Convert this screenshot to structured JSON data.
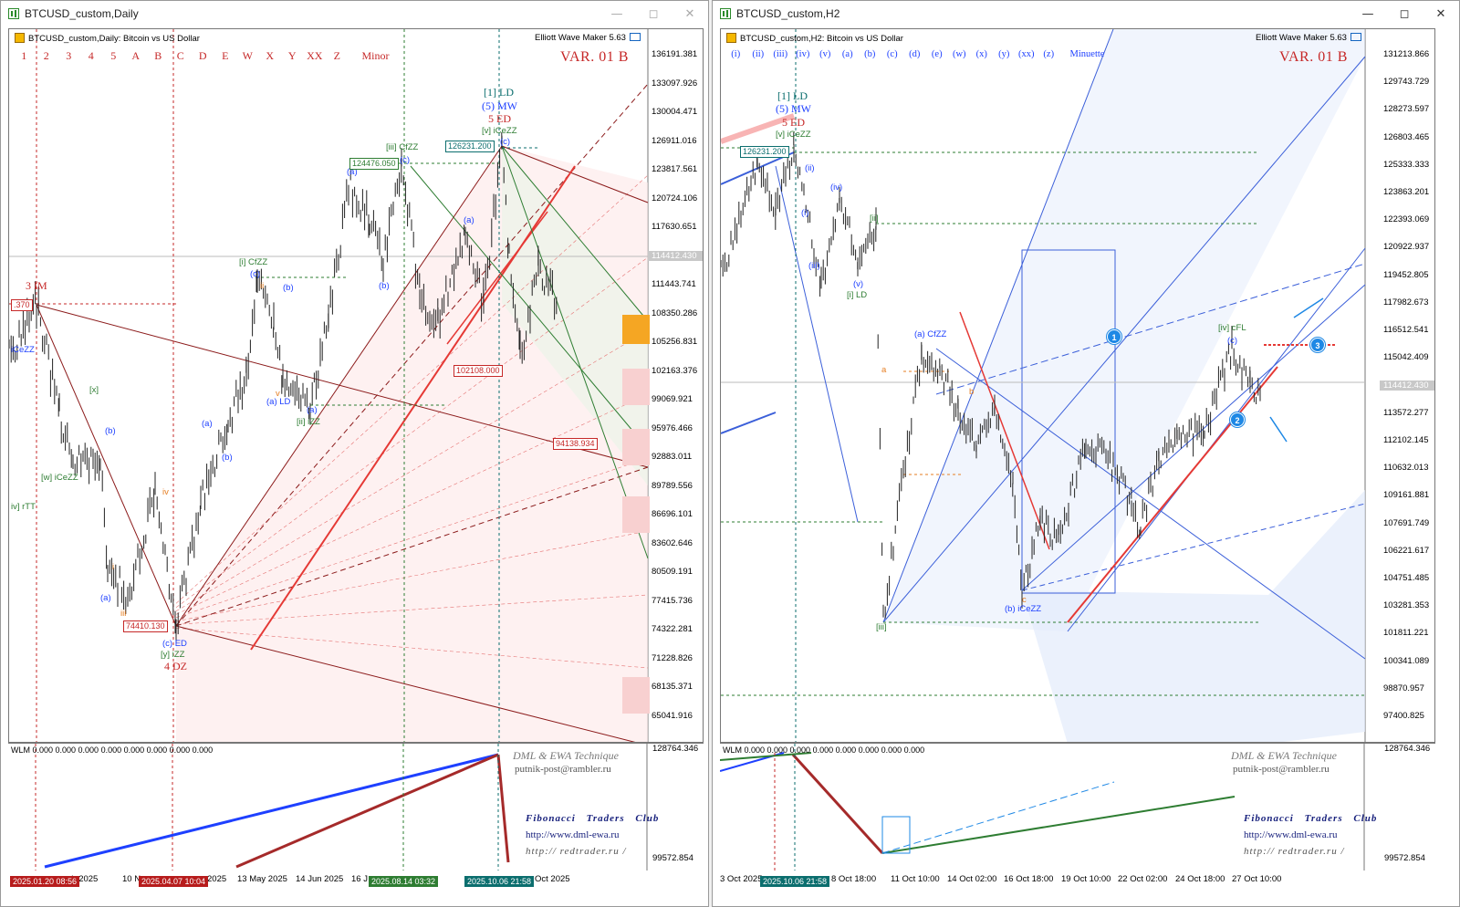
{
  "left": {
    "window_title": "BTCUSD_custom,Daily",
    "chart_header": "BTCUSD_custom,Daily:  Bitcoin vs US Dollar",
    "plugin": "Elliott Wave Maker 5.63",
    "levels": [
      "1",
      "2",
      "3",
      "4",
      "5",
      "A",
      "B",
      "C",
      "D",
      "E",
      "W",
      "X",
      "Y",
      "XX",
      "Z",
      "Minor"
    ],
    "variant": "VAR. 01 B",
    "price_axis": [
      "136191.381",
      "133097.926",
      "130004.471",
      "126911.016",
      "123817.561",
      "120724.106",
      "117630.651",
      "114412.430",
      "111443.741",
      "108350.286",
      "105256.831",
      "102163.376",
      "99069.921",
      "95976.466",
      "92883.011",
      "89789.556",
      "86696.101",
      "83602.646",
      "80509.191",
      "77415.736",
      "74322.281",
      "71228.826",
      "68135.371",
      "65041.916"
    ],
    "sub_axis": [
      "128764.346",
      "99572.854"
    ],
    "sub_label": "WLM 0.000 0.000 0.000 0.000 0.000 0.000 0.000 0.000",
    "boxes": {
      "b1": "126231.200",
      "b2": "124476.050",
      "b3": "102108.000",
      "b4": "94138.934",
      "b5": "74410.130",
      "b6": ".370"
    },
    "labels": {
      "ld1": "[1] LD",
      "mw": "(5) MW",
      "ed": "5 ED",
      "icezz": "[v] iCeZZ",
      "cfzz": "[iii] CfZZ",
      "cfzz2": "[i] CfZZ",
      "im": "3 IM",
      "izz": "[ii] iZZ",
      "ald": "(a) LD",
      "ceze": "iCeZZ",
      "wicezz": "[w] iCeZZ",
      "rtt": "iv] rTT",
      "ced": "(c) ED",
      "yzz": "[y] iZZ",
      "dz": "4 DZ",
      "x": "[x]",
      "a1": "(a)",
      "b1": "(b)",
      "c1": "(c)",
      "a2": "(a)",
      "b2": "(b)",
      "a3": "(a)",
      "c2": "(c)",
      "b3": "(b)",
      "a4": "(a)",
      "a5": "(a)",
      "iv": "iv",
      "v": "v",
      "ii": "ii",
      "i": "i",
      "iii": "iii",
      "v2": "v",
      "bb": "(b)",
      "cc": "(c)"
    },
    "x_axis": [
      "eb 2025",
      "10 N",
      "2025",
      "13 May 2025",
      "14 Jun 2025",
      "16 J",
      "Oct 2025"
    ],
    "x_tags": [
      "2025.01.20 08:56",
      "2025.04.07 10:04",
      "2025.08.14 03:32",
      "2025.10.06 21:58"
    ],
    "credit1": "DML & EWA Technique",
    "email": "putnik-post@rambler.ru",
    "fib": "Fibonacci    Traders    Club",
    "url1": "http://www.dml-ewa.ru",
    "url2": "http://  redtrader.ru  /"
  },
  "right": {
    "window_title": "BTCUSD_custom,H2",
    "chart_header": "BTCUSD_custom,H2:  Bitcoin vs US Dollar",
    "plugin": "Elliott Wave Maker 5.63",
    "levels": [
      "(i)",
      "(ii)",
      "(iii)",
      "(iv)",
      "(v)",
      "(a)",
      "(b)",
      "(c)",
      "(d)",
      "(e)",
      "(w)",
      "(x)",
      "(y)",
      "(xx)",
      "(z)",
      "Minuette"
    ],
    "variant": "VAR. 01 B",
    "price_axis": [
      "131213.866",
      "129743.729",
      "128273.597",
      "126803.465",
      "125333.333",
      "123863.201",
      "122393.069",
      "120922.937",
      "119452.805",
      "117982.673",
      "116512.541",
      "115042.409",
      "114412.430",
      "113572.277",
      "112102.145",
      "110632.013",
      "109161.881",
      "107691.749",
      "106221.617",
      "104751.485",
      "103281.353",
      "101811.221",
      "100341.089",
      "98870.957",
      "97400.825"
    ],
    "sub_axis": [
      "128764.346",
      "99572.854"
    ],
    "sub_label": "WLM 0.000 0.000 0.000 0.000 0.000 0.000 0.000 0.000",
    "boxes": {
      "b1": "126231.200"
    },
    "labels": {
      "ld1": "[1] LD",
      "mw": "(5) MW",
      "ed": "5 ED",
      "icezz": "[v] iCeZZ",
      "ii": "[ii]",
      "ild": "[i] LD",
      "acfzz": "(a) CfZZ",
      "bicezz": "(b) iCeZZ",
      "iiib": "[iii]",
      "ivcfl": "[iv] cFL",
      "c": "(c)",
      "ii2": "(ii)",
      "iv2": "(iv)",
      "i2": "(i)",
      "iii2": "(iii)",
      "v2": "(v)",
      "b": "b",
      "a": "a",
      "c2": "c",
      "circ1": "1",
      "circ2": "2",
      "circ3": "3"
    },
    "x_axis": [
      "3 Oct 2025",
      "8 Oct 18:00",
      "11 Oct 10:00",
      "14 Oct 02:00",
      "16 Oct 18:00",
      "19 Oct 10:00",
      "22 Oct 02:00",
      "24 Oct 18:00",
      "27 Oct 10:00"
    ],
    "x_tags": [
      "2025.10.06 21:58"
    ],
    "credit1": "DML & EWA Technique",
    "email": "putnik-post@rambler.ru",
    "fib": "Fibonacci    Traders    Club",
    "url1": "http://www.dml-ewa.ru",
    "url2": "http://  redtrader.ru  /"
  },
  "colors": {
    "red": "#c62828",
    "blue": "#1e40ff",
    "green": "#2e7d32",
    "teal": "#0b6e6e",
    "pink": "#fde8e8"
  }
}
